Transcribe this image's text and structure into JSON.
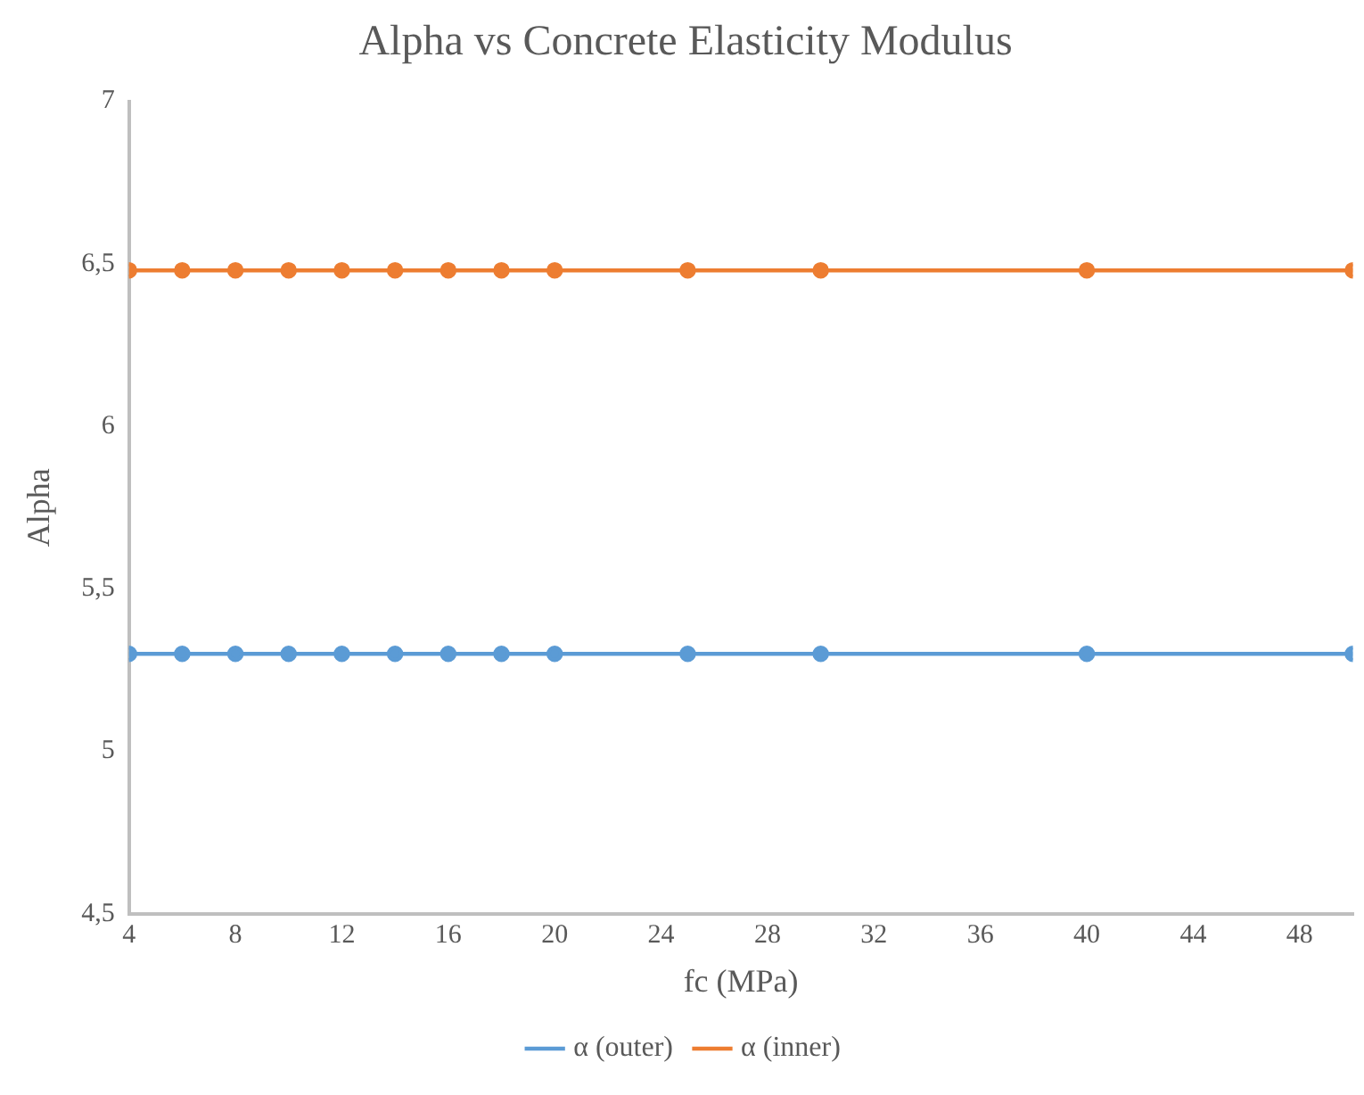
{
  "chart_data": {
    "type": "line",
    "title": "Alpha vs Concrete Elasticity Modulus",
    "xlabel": "fc (MPa)",
    "ylabel": "Alpha",
    "x": [
      4,
      6,
      8,
      10,
      12,
      14,
      16,
      18,
      20,
      25,
      30,
      40,
      50
    ],
    "series": [
      {
        "name": "α (outer)",
        "color": "#5b9bd5",
        "values": [
          5.3,
          5.3,
          5.3,
          5.3,
          5.3,
          5.3,
          5.3,
          5.3,
          5.3,
          5.3,
          5.3,
          5.3,
          5.3
        ]
      },
      {
        "name": "α (inner)",
        "color": "#ed7d31",
        "values": [
          6.48,
          6.48,
          6.48,
          6.48,
          6.48,
          6.48,
          6.48,
          6.48,
          6.48,
          6.48,
          6.48,
          6.48,
          6.48
        ]
      }
    ],
    "xlim": [
      4,
      50
    ],
    "xticks": [
      4,
      8,
      12,
      16,
      20,
      24,
      28,
      32,
      36,
      40,
      44,
      48
    ],
    "ylim": [
      4.5,
      7
    ],
    "yticks": [
      {
        "value": 4.5,
        "label": "4,5"
      },
      5,
      {
        "value": 5.5,
        "label": "5,5"
      },
      6,
      {
        "value": 6.5,
        "label": "6,5"
      },
      7
    ],
    "grid": false,
    "legend": "bottom",
    "marker": "circle",
    "line_style": "solid"
  }
}
